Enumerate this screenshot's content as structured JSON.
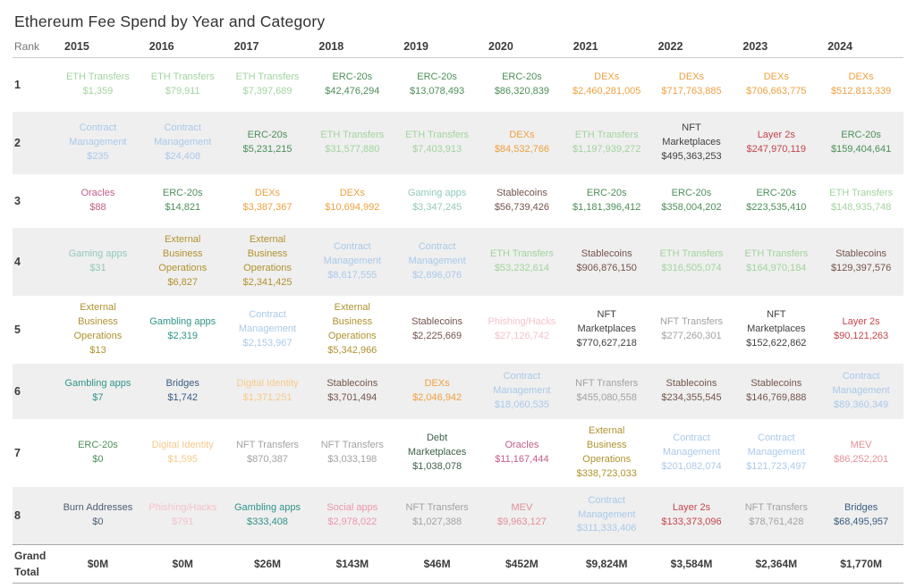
{
  "chart_data": {
    "type": "table",
    "title": "Ethereum Fee Spend by Year and Category",
    "columns": [
      "Rank",
      "2015",
      "2016",
      "2017",
      "2018",
      "2019",
      "2020",
      "2021",
      "2022",
      "2023",
      "2024"
    ],
    "category_colors": {
      "ETH Transfers": "#a2d49e",
      "ERC-20s": "#4c8f58",
      "DEXs": "#efa03f",
      "Contract Management": "#aac9e9",
      "NFT Marketplaces": "#3f3f3f",
      "Layer 2s": "#c4454b",
      "Stablecoins": "#74544a",
      "Oracles": "#c35d88",
      "Gaming apps": "#93c8bc",
      "External Business Operations": "#b0922e",
      "Gambling apps": "#2f9488",
      "Bridges": "#3a5c80",
      "Digital Identity": "#f7c98b",
      "Phishing/Hacks": "#f5c2cb",
      "NFT Transfers": "#a2a2a2",
      "Debt Marketplaces": "#3d6049",
      "MEV": "#e38f95",
      "Burn Addresses": "#4a5e73",
      "Social apps": "#ee95ab"
    },
    "rows": [
      {
        "rank": "1",
        "cells": [
          {
            "category": "ETH Transfers",
            "value": "$1,359"
          },
          {
            "category": "ETH Transfers",
            "value": "$79,911"
          },
          {
            "category": "ETH Transfers",
            "value": "$7,397,689"
          },
          {
            "category": "ERC-20s",
            "value": "$42,476,294"
          },
          {
            "category": "ERC-20s",
            "value": "$13,078,493"
          },
          {
            "category": "ERC-20s",
            "value": "$86,320,839"
          },
          {
            "category": "DEXs",
            "value": "$2,460,281,005"
          },
          {
            "category": "DEXs",
            "value": "$717,763,885"
          },
          {
            "category": "DEXs",
            "value": "$706,663,775"
          },
          {
            "category": "DEXs",
            "value": "$512,813,339"
          }
        ]
      },
      {
        "rank": "2",
        "cells": [
          {
            "category": "Contract Management",
            "value": "$235"
          },
          {
            "category": "Contract Management",
            "value": "$24,408"
          },
          {
            "category": "ERC-20s",
            "value": "$5,231,215"
          },
          {
            "category": "ETH Transfers",
            "value": "$31,577,880"
          },
          {
            "category": "ETH Transfers",
            "value": "$7,403,913"
          },
          {
            "category": "DEXs",
            "value": "$84,532,766"
          },
          {
            "category": "ETH Transfers",
            "value": "$1,197,939,272"
          },
          {
            "category": "NFT Marketplaces",
            "value": "$495,363,253"
          },
          {
            "category": "Layer 2s",
            "value": "$247,970,119"
          },
          {
            "category": "ERC-20s",
            "value": "$159,404,641"
          }
        ]
      },
      {
        "rank": "3",
        "cells": [
          {
            "category": "Oracles",
            "value": "$88"
          },
          {
            "category": "ERC-20s",
            "value": "$14,821"
          },
          {
            "category": "DEXs",
            "value": "$3,387,367"
          },
          {
            "category": "DEXs",
            "value": "$10,694,992"
          },
          {
            "category": "Gaming apps",
            "value": "$3,347,245"
          },
          {
            "category": "Stablecoins",
            "value": "$56,739,426"
          },
          {
            "category": "ERC-20s",
            "value": "$1,181,396,412"
          },
          {
            "category": "ERC-20s",
            "value": "$358,004,202"
          },
          {
            "category": "ERC-20s",
            "value": "$223,535,410"
          },
          {
            "category": "ETH Transfers",
            "value": "$148,935,748"
          }
        ]
      },
      {
        "rank": "4",
        "cells": [
          {
            "category": "Gaming apps",
            "value": "$31"
          },
          {
            "category": "External Business Operations",
            "value": "$6,827"
          },
          {
            "category": "External Business Operations",
            "value": "$2,341,425"
          },
          {
            "category": "Contract Management",
            "value": "$8,617,555"
          },
          {
            "category": "Contract Management",
            "value": "$2,896,076"
          },
          {
            "category": "ETH Transfers",
            "value": "$53,232,614"
          },
          {
            "category": "Stablecoins",
            "value": "$906,876,150"
          },
          {
            "category": "ETH Transfers",
            "value": "$316,505,074"
          },
          {
            "category": "ETH Transfers",
            "value": "$164,970,184"
          },
          {
            "category": "Stablecoins",
            "value": "$129,397,576"
          }
        ]
      },
      {
        "rank": "5",
        "cells": [
          {
            "category": "External Business Operations",
            "value": "$13"
          },
          {
            "category": "Gambling apps",
            "value": "$2,319"
          },
          {
            "category": "Contract Management",
            "value": "$2,153,967"
          },
          {
            "category": "External Business Operations",
            "value": "$5,342,966"
          },
          {
            "category": "Stablecoins",
            "value": "$2,225,669"
          },
          {
            "category": "Phishing/Hacks",
            "value": "$27,126,742"
          },
          {
            "category": "NFT Marketplaces",
            "value": "$770,627,218"
          },
          {
            "category": "NFT Transfers",
            "value": "$277,260,301"
          },
          {
            "category": "NFT Marketplaces",
            "value": "$152,622,862"
          },
          {
            "category": "Layer 2s",
            "value": "$90,121,263"
          }
        ]
      },
      {
        "rank": "6",
        "cells": [
          {
            "category": "Gambling apps",
            "value": "$7"
          },
          {
            "category": "Bridges",
            "value": "$1,742"
          },
          {
            "category": "Digital Identity",
            "value": "$1,371,251"
          },
          {
            "category": "Stablecoins",
            "value": "$3,701,494"
          },
          {
            "category": "DEXs",
            "value": "$2,046,942"
          },
          {
            "category": "Contract Management",
            "value": "$18,060,535"
          },
          {
            "category": "NFT Transfers",
            "value": "$455,080,558"
          },
          {
            "category": "Stablecoins",
            "value": "$234,355,545"
          },
          {
            "category": "Stablecoins",
            "value": "$146,769,888"
          },
          {
            "category": "Contract Management",
            "value": "$89,360,349"
          }
        ]
      },
      {
        "rank": "7",
        "cells": [
          {
            "category": "ERC-20s",
            "value": "$0"
          },
          {
            "category": "Digital Identity",
            "value": "$1,595"
          },
          {
            "category": "NFT Transfers",
            "value": "$870,387"
          },
          {
            "category": "NFT Transfers",
            "value": "$3,033,198"
          },
          {
            "category": "Debt Marketplaces",
            "value": "$1,038,078"
          },
          {
            "category": "Oracles",
            "value": "$11,167,444"
          },
          {
            "category": "External Business Operations",
            "value": "$338,723,033"
          },
          {
            "category": "Contract Management",
            "value": "$201,082,074"
          },
          {
            "category": "Contract Management",
            "value": "$121,723,497"
          },
          {
            "category": "MEV",
            "value": "$86,252,201"
          }
        ]
      },
      {
        "rank": "8",
        "cells": [
          {
            "category": "Burn Addresses",
            "value": "$0"
          },
          {
            "category": "Phishing/Hacks",
            "value": "$791"
          },
          {
            "category": "Gambling apps",
            "value": "$333,408"
          },
          {
            "category": "Social apps",
            "value": "$2,978,022"
          },
          {
            "category": "NFT Transfers",
            "value": "$1,027,388"
          },
          {
            "category": "MEV",
            "value": "$9,963,127"
          },
          {
            "category": "Contract Management",
            "value": "$311,333,406"
          },
          {
            "category": "Layer 2s",
            "value": "$133,373,096"
          },
          {
            "category": "NFT Transfers",
            "value": "$78,761,428"
          },
          {
            "category": "Bridges",
            "value": "$68,495,957"
          }
        ]
      }
    ],
    "grand_total": {
      "label": "Grand Total",
      "values": [
        "$0M",
        "$0M",
        "$26M",
        "$143M",
        "$46M",
        "$452M",
        "$9,824M",
        "$3,584M",
        "$2,364M",
        "$1,770M"
      ]
    }
  }
}
